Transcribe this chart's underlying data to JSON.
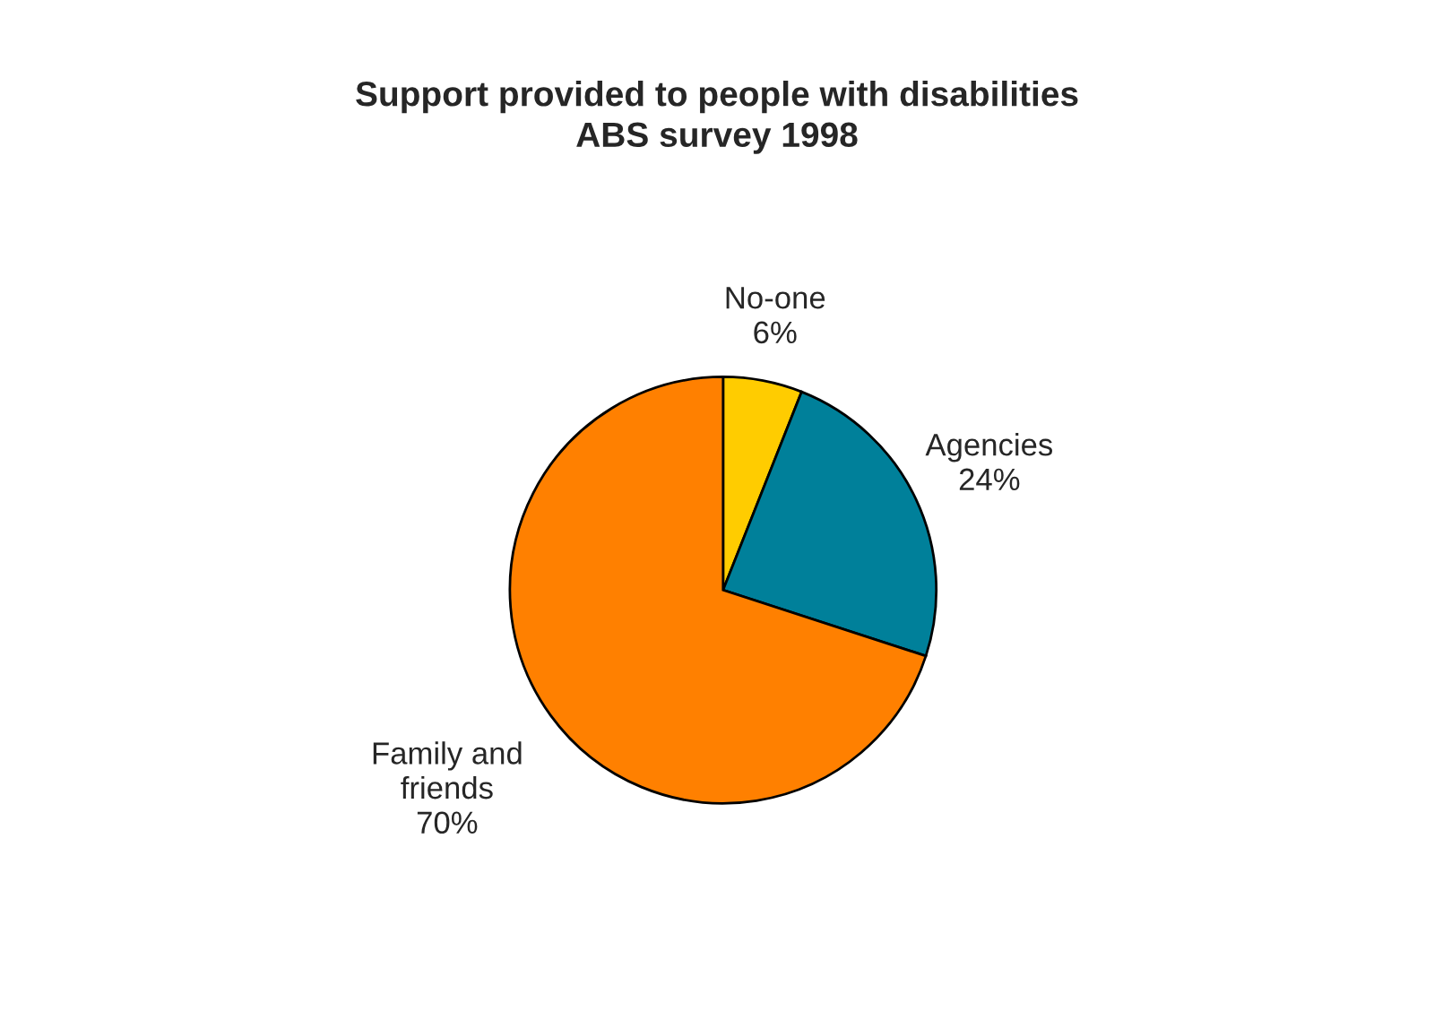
{
  "chart_data": {
    "type": "pie",
    "title": "Support provided to people with disabilities",
    "subtitle": "ABS survey 1998",
    "categories": [
      "No-one",
      "Agencies",
      "Family and\nfriends"
    ],
    "values": [
      6,
      24,
      70
    ],
    "value_labels": [
      "6%",
      "24%",
      "70%"
    ],
    "colors": [
      "#ffcc00",
      "#00809a",
      "#ff8000"
    ]
  }
}
